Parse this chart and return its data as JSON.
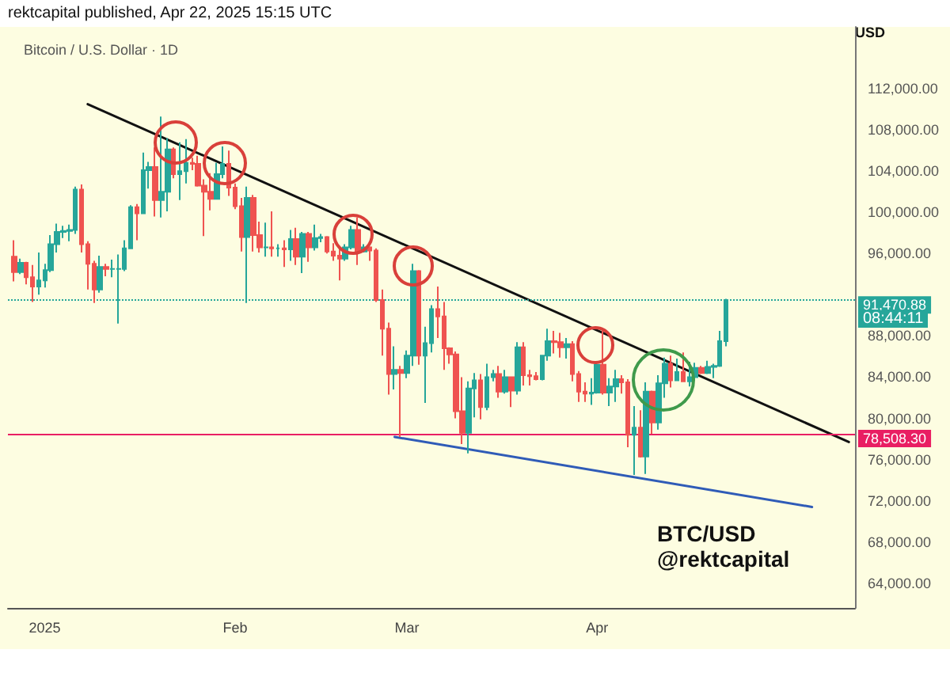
{
  "chart_data": {
    "type": "candlestick",
    "subtitle": "rektcapital published, Apr 22, 2025 15:15 UTC",
    "title": "Bitcoin / U.S. Dollar · 1D",
    "ylabel": "USD",
    "x": [
      "2024-12-27",
      "2024-12-28",
      "2024-12-29",
      "2024-12-30",
      "2024-12-31",
      "2025-01-01",
      "2025-01-02",
      "2025-01-03",
      "2025-01-04",
      "2025-01-05",
      "2025-01-06",
      "2025-01-07",
      "2025-01-08",
      "2025-01-09",
      "2025-01-10",
      "2025-01-11",
      "2025-01-12",
      "2025-01-13",
      "2025-01-14",
      "2025-01-15",
      "2025-01-16",
      "2025-01-17",
      "2025-01-18",
      "2025-01-19",
      "2025-01-20",
      "2025-01-21",
      "2025-01-22",
      "2025-01-23",
      "2025-01-24",
      "2025-01-25",
      "2025-01-26",
      "2025-01-27",
      "2025-01-28",
      "2025-01-29",
      "2025-01-30",
      "2025-01-31",
      "2025-02-01",
      "2025-02-02",
      "2025-02-03",
      "2025-02-04",
      "2025-02-05",
      "2025-02-06",
      "2025-02-07",
      "2025-02-08",
      "2025-02-09",
      "2025-02-10",
      "2025-02-11",
      "2025-02-12",
      "2025-02-13",
      "2025-02-14",
      "2025-02-15",
      "2025-02-16",
      "2025-02-17",
      "2025-02-18",
      "2025-02-19",
      "2025-02-20",
      "2025-02-21",
      "2025-02-22",
      "2025-02-23",
      "2025-02-24",
      "2025-02-25",
      "2025-02-26",
      "2025-02-27",
      "2025-02-28",
      "2025-03-01",
      "2025-03-02",
      "2025-03-03",
      "2025-03-04",
      "2025-03-05",
      "2025-03-06",
      "2025-03-07",
      "2025-03-08",
      "2025-03-09",
      "2025-03-10",
      "2025-03-11",
      "2025-03-12",
      "2025-03-13",
      "2025-03-14",
      "2025-03-15",
      "2025-03-16",
      "2025-03-17",
      "2025-03-18",
      "2025-03-19",
      "2025-03-20",
      "2025-03-21",
      "2025-03-22",
      "2025-03-23",
      "2025-03-24",
      "2025-03-25",
      "2025-03-26",
      "2025-03-27",
      "2025-03-28",
      "2025-03-29",
      "2025-03-30",
      "2025-03-31",
      "2025-04-01",
      "2025-04-02",
      "2025-04-03",
      "2025-04-04",
      "2025-04-05",
      "2025-04-06",
      "2025-04-07",
      "2025-04-08",
      "2025-04-09",
      "2025-04-10",
      "2025-04-11",
      "2025-04-12",
      "2025-04-13",
      "2025-04-14",
      "2025-04-15",
      "2025-04-16",
      "2025-04-17",
      "2025-04-18",
      "2025-04-19",
      "2025-04-20",
      "2025-04-21",
      "2025-04-22"
    ],
    "ohlc": [
      [
        95700,
        97300,
        93300,
        94200
      ],
      [
        94200,
        95500,
        94000,
        95100
      ],
      [
        95100,
        95200,
        93000,
        93700
      ],
      [
        93700,
        94900,
        91300,
        92800
      ],
      [
        92800,
        96100,
        92000,
        93400
      ],
      [
        93400,
        95000,
        92700,
        94400
      ],
      [
        94400,
        97800,
        94200,
        96900
      ],
      [
        96900,
        98900,
        96100,
        98100
      ],
      [
        98100,
        98700,
        97500,
        98200
      ],
      [
        98200,
        98800,
        97200,
        98300
      ],
      [
        98300,
        102500,
        97900,
        102200
      ],
      [
        102200,
        102700,
        96100,
        96900
      ],
      [
        96900,
        97200,
        92500,
        95000
      ],
      [
        95000,
        95300,
        91200,
        92500
      ],
      [
        92500,
        95800,
        92200,
        94700
      ],
      [
        94700,
        95000,
        93800,
        94500
      ],
      [
        94500,
        95400,
        93700,
        94500
      ],
      [
        94500,
        95900,
        89200,
        94500
      ],
      [
        94500,
        97300,
        94300,
        96500
      ],
      [
        96500,
        100700,
        96500,
        100500
      ],
      [
        100500,
        100800,
        97300,
        99900
      ],
      [
        99900,
        105800,
        99900,
        104100
      ],
      [
        104100,
        104900,
        102300,
        104400
      ],
      [
        104400,
        106300,
        99600,
        101200
      ],
      [
        101200,
        109300,
        99500,
        102000
      ],
      [
        102000,
        107200,
        100100,
        106100
      ],
      [
        106100,
        106300,
        103300,
        103700
      ],
      [
        103700,
        106800,
        101200,
        104000
      ],
      [
        104000,
        107100,
        102800,
        104800
      ],
      [
        104800,
        105300,
        104100,
        104700
      ],
      [
        104700,
        105500,
        102500,
        102600
      ],
      [
        102600,
        103200,
        97700,
        102000
      ],
      [
        102000,
        103800,
        100200,
        101300
      ],
      [
        101300,
        104800,
        101300,
        103700
      ],
      [
        103700,
        106400,
        103300,
        104700
      ],
      [
        104700,
        106000,
        101600,
        102400
      ],
      [
        102400,
        102800,
        100300,
        100600
      ],
      [
        100600,
        101400,
        96200,
        97600
      ],
      [
        97600,
        102500,
        91200,
        101400
      ],
      [
        101400,
        101700,
        96200,
        97800
      ],
      [
        97800,
        99100,
        96100,
        96600
      ],
      [
        96600,
        99000,
        95700,
        96600
      ],
      [
        96600,
        100100,
        95700,
        96500
      ],
      [
        96500,
        96900,
        95700,
        96500
      ],
      [
        96500,
        97300,
        94700,
        96400
      ],
      [
        96400,
        98300,
        95300,
        97400
      ],
      [
        97400,
        98500,
        94900,
        95700
      ],
      [
        95700,
        98100,
        94100,
        97900
      ],
      [
        97900,
        98100,
        95200,
        96600
      ],
      [
        96600,
        98800,
        96300,
        97500
      ],
      [
        97500,
        97900,
        97100,
        97600
      ],
      [
        97600,
        97700,
        96000,
        96200
      ],
      [
        96200,
        97000,
        95300,
        95800
      ],
      [
        95800,
        96700,
        93400,
        95500
      ],
      [
        95500,
        96900,
        95300,
        96600
      ],
      [
        96600,
        98700,
        96400,
        98300
      ],
      [
        98300,
        99500,
        94900,
        96200
      ],
      [
        96200,
        96900,
        96100,
        96600
      ],
      [
        96600,
        96700,
        95300,
        96300
      ],
      [
        96300,
        96500,
        91300,
        91500
      ],
      [
        91500,
        92500,
        86100,
        88700
      ],
      [
        88700,
        89300,
        82300,
        84300
      ],
      [
        84300,
        87000,
        82800,
        84700
      ],
      [
        84700,
        85100,
        78200,
        84400
      ],
      [
        84400,
        86600,
        83900,
        86100
      ],
      [
        86100,
        95000,
        85100,
        94300
      ],
      [
        94300,
        94400,
        85200,
        86100
      ],
      [
        86100,
        88900,
        81500,
        87300
      ],
      [
        87300,
        91000,
        86400,
        90600
      ],
      [
        90600,
        92800,
        87800,
        89900
      ],
      [
        89900,
        91300,
        84700,
        86800
      ],
      [
        86800,
        86900,
        85300,
        86200
      ],
      [
        86200,
        86500,
        80000,
        80700
      ],
      [
        80700,
        84000,
        77500,
        78600
      ],
      [
        78600,
        83600,
        76600,
        82900
      ],
      [
        82900,
        84400,
        80100,
        83700
      ],
      [
        83700,
        84300,
        79900,
        81100
      ],
      [
        81100,
        85300,
        80800,
        84000
      ],
      [
        84000,
        84700,
        83600,
        84300
      ],
      [
        84300,
        85100,
        82000,
        82600
      ],
      [
        82600,
        84700,
        82400,
        84000
      ],
      [
        84000,
        84000,
        81100,
        82700
      ],
      [
        82700,
        87400,
        82300,
        86900
      ],
      [
        86900,
        87400,
        83200,
        84200
      ],
      [
        84200,
        84700,
        83200,
        84100
      ],
      [
        84100,
        84500,
        83700,
        83800
      ],
      [
        83800,
        86100,
        83700,
        86100
      ],
      [
        86100,
        88700,
        85600,
        87500
      ],
      [
        87500,
        88500,
        86300,
        87400
      ],
      [
        87400,
        88300,
        85900,
        86900
      ],
      [
        86900,
        87800,
        85800,
        87200
      ],
      [
        87200,
        87500,
        83600,
        84300
      ],
      [
        84300,
        84600,
        81600,
        82600
      ],
      [
        82600,
        83500,
        81600,
        82400
      ],
      [
        82400,
        83900,
        81300,
        82500
      ],
      [
        82500,
        85500,
        82400,
        85200
      ],
      [
        85200,
        88500,
        82300,
        82500
      ],
      [
        82500,
        83900,
        81200,
        83100
      ],
      [
        83100,
        84700,
        81600,
        83800
      ],
      [
        83800,
        84200,
        82400,
        83500
      ],
      [
        83500,
        83800,
        77200,
        78400
      ],
      [
        78400,
        81200,
        74500,
        79100
      ],
      [
        79100,
        80800,
        76200,
        76300
      ],
      [
        76300,
        83500,
        74600,
        82600
      ],
      [
        82600,
        82700,
        78500,
        79600
      ],
      [
        79600,
        84200,
        78900,
        83400
      ],
      [
        83400,
        85900,
        82000,
        85300
      ],
      [
        85300,
        86100,
        83000,
        83700
      ],
      [
        83700,
        85800,
        83700,
        84500
      ],
      [
        84500,
        86400,
        83600,
        83600
      ],
      [
        83600,
        85500,
        83100,
        84000
      ],
      [
        84000,
        85400,
        83700,
        84900
      ],
      [
        84900,
        85100,
        84300,
        84400
      ],
      [
        84400,
        85600,
        84300,
        85000
      ],
      [
        85000,
        85300,
        83900,
        85100
      ],
      [
        85100,
        88500,
        85000,
        87500
      ],
      [
        87500,
        91600,
        87000,
        91470.88
      ]
    ],
    "series": [
      {
        "type": "line",
        "x": [
          "2025-01-08",
          "2025-05-12"
        ],
        "values": [
          110500,
          77700
        ],
        "color": "#111111"
      },
      {
        "type": "line",
        "x": [
          "2025-02-27",
          "2025-05-06"
        ],
        "values": [
          78200,
          71400
        ],
        "color": "#2f5bb7"
      }
    ],
    "xlim": [
      "2024-12-26",
      "2025-05-13"
    ],
    "xticks": [
      {
        "value": "2025-01-01",
        "label": "2025"
      },
      {
        "value": "2025-02-01",
        "label": "Feb"
      },
      {
        "value": "2025-03-01",
        "label": "Mar"
      },
      {
        "value": "2025-04-01",
        "label": "Apr"
      }
    ],
    "ylim": [
      61600,
      118000
    ],
    "yticks": [
      {
        "value": 64000,
        "label": "64,000.00"
      },
      {
        "value": 68000,
        "label": "68,000.00"
      },
      {
        "value": 72000,
        "label": "72,000.00"
      },
      {
        "value": 76000,
        "label": "76,000.00"
      },
      {
        "value": 80000,
        "label": "80,000.00"
      },
      {
        "value": 84000,
        "label": "84,000.00"
      },
      {
        "value": 88000,
        "label": "88,000.00"
      },
      {
        "value": 96000,
        "label": "96,000.00"
      },
      {
        "value": 100000,
        "label": "100,000.00"
      },
      {
        "value": 104000,
        "label": "104,000.00"
      },
      {
        "value": 108000,
        "label": "108,000.00"
      },
      {
        "value": 112000,
        "label": "112,000.00"
      }
    ],
    "ref_lines": [
      {
        "axis": "y",
        "value": 78508.3,
        "label": "78,508.30",
        "color": "#e91e63",
        "line_style": "solid"
      },
      {
        "axis": "y",
        "value": 91470.88,
        "label": "91,470.88",
        "color": "#26a69a",
        "line_style": "dotted"
      }
    ],
    "annotations": [
      "08:44:11",
      "BTC/USD",
      "@rektcapital"
    ],
    "grid": false,
    "marker": "none"
  }
}
